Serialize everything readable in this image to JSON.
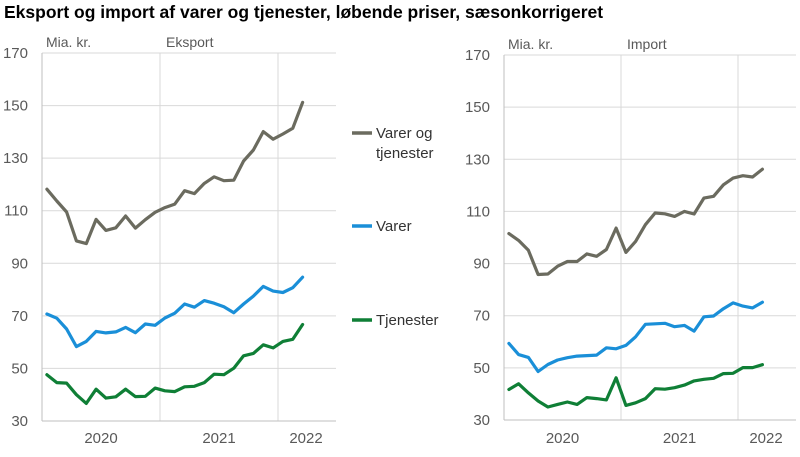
{
  "title": "Eksport og import af varer og tjenester, løbende priser, sæsonkorrigeret",
  "colors": {
    "varer_og_tjenester": "#6b6b5f",
    "varer": "#1a8fd8",
    "tjenester": "#0f7f36",
    "grid": "#d9d9d9",
    "axis": "#bfbfbf"
  },
  "legend": [
    {
      "key": "varer_og_tjenester",
      "lines": [
        "Varer og",
        "tjenester"
      ]
    },
    {
      "key": "varer",
      "lines": [
        "Varer"
      ]
    },
    {
      "key": "tjenester",
      "lines": [
        "Tjenester"
      ]
    }
  ],
  "chart_data": [
    {
      "type": "line",
      "title": "Eksport",
      "ylabel": "Mia. kr.",
      "ylim": [
        30,
        170
      ],
      "yticks": [
        30,
        50,
        70,
        90,
        110,
        130,
        150,
        170
      ],
      "xticks": [
        "2020",
        "2021",
        "2022"
      ],
      "x_start": "2020-01",
      "x_end": "2022-03",
      "frequency": "monthly",
      "grid": true,
      "series": [
        {
          "name": "Varer og tjenester",
          "key": "varer_og_tjenester",
          "values": [
            118.2,
            113.7,
            109.5,
            98.5,
            97.5,
            106.7,
            102.5,
            103.5,
            108,
            103.4,
            106.6,
            109.4,
            111.2,
            112.5,
            117.6,
            116.5,
            120.4,
            122.9,
            121.4,
            121.6,
            128.9,
            133.1,
            140.1,
            137.2,
            139.2,
            141.4,
            151.2
          ]
        },
        {
          "name": "Varer",
          "key": "varer",
          "values": [
            70.7,
            69.1,
            65,
            58.3,
            60.3,
            64.1,
            63.5,
            63.9,
            65.6,
            63.6,
            66.9,
            66.4,
            69.2,
            71,
            74.5,
            73.3,
            75.8,
            74.8,
            73.5,
            71.2,
            74.5,
            77.5,
            81.2,
            79.4,
            78.9,
            80.7,
            84.7
          ]
        },
        {
          "name": "Tjenester",
          "key": "tjenester",
          "values": [
            47.6,
            44.6,
            44.4,
            40,
            36.7,
            42.1,
            38.7,
            39.2,
            42.1,
            39.3,
            39.4,
            42.5,
            41.5,
            41.2,
            43,
            43.2,
            44.6,
            47.8,
            47.6,
            50.1,
            54.8,
            55.7,
            59,
            57.8,
            60.3,
            61.1,
            66.7
          ]
        }
      ]
    },
    {
      "type": "line",
      "title": "Import",
      "ylabel": "Mia. kr.",
      "ylim": [
        30,
        170
      ],
      "yticks": [
        30,
        50,
        70,
        90,
        110,
        130,
        150,
        170
      ],
      "xticks": [
        "2020",
        "2021",
        "2022"
      ],
      "x_start": "2020-01",
      "x_end": "2022-03",
      "frequency": "monthly",
      "grid": true,
      "series": [
        {
          "name": "Varer og tjenester",
          "key": "varer_og_tjenester",
          "values": [
            101.5,
            98.9,
            95.1,
            85.8,
            86,
            89,
            90.8,
            90.8,
            93.7,
            92.8,
            95.4,
            103.6,
            94.3,
            98.5,
            104.9,
            109.4,
            109.1,
            108.1,
            110,
            109,
            115.1,
            115.8,
            120.2,
            122.8,
            123.7,
            123.2,
            126.2
          ]
        },
        {
          "name": "Varer",
          "key": "varer",
          "values": [
            59.4,
            55.1,
            54,
            48.6,
            51.3,
            53,
            53.9,
            54.5,
            54.7,
            54.9,
            57.7,
            57.3,
            58.6,
            61.9,
            66.7,
            66.9,
            67.1,
            65.8,
            66.3,
            64.1,
            69.6,
            69.9,
            72.7,
            74.9,
            73.7,
            73,
            75.2
          ]
        },
        {
          "name": "Tjenester",
          "key": "tjenester",
          "values": [
            41.7,
            43.9,
            40.4,
            37.3,
            35,
            36,
            36.9,
            36,
            38.6,
            38.2,
            37.7,
            46.2,
            35.6,
            36.6,
            38.2,
            42,
            41.8,
            42.4,
            43.4,
            45,
            45.6,
            46,
            47.8,
            47.9,
            50.1,
            50.1,
            51.2
          ]
        }
      ]
    }
  ]
}
